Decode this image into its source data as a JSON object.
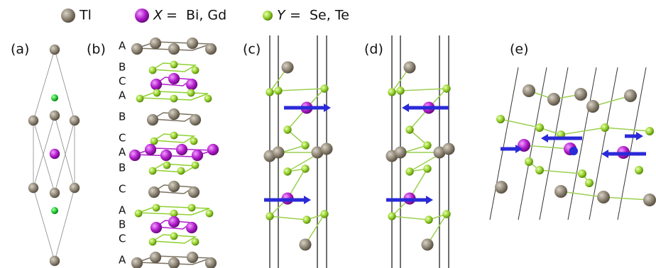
{
  "legend": {
    "tl": "Tl",
    "x_symbol": "X",
    "x_text": "=  Bi, Gd",
    "y_symbol": "Y",
    "y_text": "=  Se, Te"
  },
  "panels": [
    "(a)",
    "(b)",
    "(c)",
    "(d)",
    "(e)"
  ],
  "stacking": [
    "A",
    "B",
    "C",
    "A",
    "B",
    "C",
    "A",
    "B",
    "C",
    "A",
    "B",
    "C",
    "A"
  ]
}
